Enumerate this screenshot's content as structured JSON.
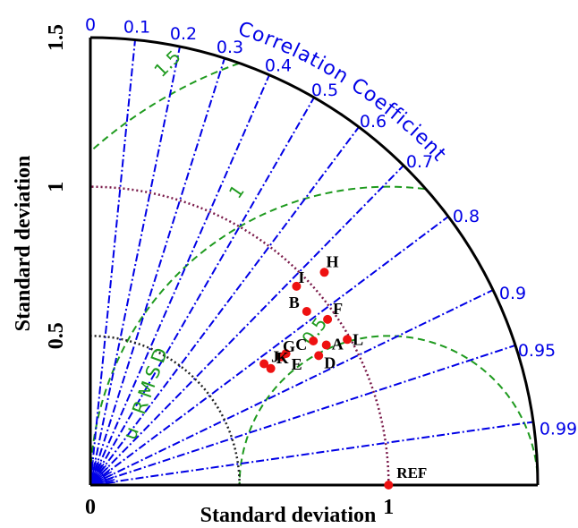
{
  "chart_data": {
    "type": "scatter",
    "subtype": "taylor-diagram",
    "title": "",
    "xlabel": "Standard deviation",
    "ylabel": "Standard deviation",
    "x_ticks": [
      {
        "value": 0,
        "label": "0"
      },
      {
        "value": 1,
        "label": "1"
      }
    ],
    "y_ticks": [
      {
        "value": 0,
        "label": "0"
      },
      {
        "value": 0.5,
        "label": "0.5"
      },
      {
        "value": 1,
        "label": "1"
      },
      {
        "value": 1.5,
        "label": "1.5"
      }
    ],
    "std_max": 1.5,
    "x_max": 1,
    "correlation_label": "Correlation Coefficient",
    "correlation_ticks": [
      {
        "value": 0,
        "label": "0"
      },
      {
        "value": 0.1,
        "label": "0.1"
      },
      {
        "value": 0.2,
        "label": "0.2"
      },
      {
        "value": 0.3,
        "label": "0.3"
      },
      {
        "value": 0.4,
        "label": "0.4"
      },
      {
        "value": 0.5,
        "label": "0.5"
      },
      {
        "value": 0.6,
        "label": "0.6"
      },
      {
        "value": 0.7,
        "label": "0.7"
      },
      {
        "value": 0.8,
        "label": "0.8"
      },
      {
        "value": 0.9,
        "label": "0.9"
      },
      {
        "value": 0.95,
        "label": "0.95"
      },
      {
        "value": 0.99,
        "label": "0.99"
      }
    ],
    "rmsd_label": "u RMSD",
    "rmsd_contours": [
      {
        "value": 0.5,
        "label": "0.5"
      },
      {
        "value": 1,
        "label": "1"
      },
      {
        "value": 1.5,
        "label": "1.5"
      }
    ],
    "std_arcs": [
      0.5,
      1
    ],
    "reference": {
      "label": "REF",
      "std": 1,
      "corr": 1
    },
    "points": [
      {
        "label": "A",
        "std": 0.92,
        "corr": 0.86
      },
      {
        "label": "B",
        "std": 0.93,
        "corr": 0.78
      },
      {
        "label": "C",
        "std": 0.89,
        "corr": 0.84
      },
      {
        "label": "D",
        "std": 0.88,
        "corr": 0.87
      },
      {
        "label": "E",
        "std": 0.79,
        "corr": 0.83
      },
      {
        "label": "F",
        "std": 0.97,
        "corr": 0.82
      },
      {
        "label": "G",
        "std": 0.77,
        "corr": 0.83
      },
      {
        "label": "H",
        "std": 1.06,
        "corr": 0.74
      },
      {
        "label": "I",
        "std": 0.96,
        "corr": 0.72
      },
      {
        "label": "J",
        "std": 0.71,
        "corr": 0.82
      },
      {
        "label": "K",
        "std": 0.72,
        "corr": 0.84
      },
      {
        "label": "L",
        "std": 0.99,
        "corr": 0.87
      }
    ],
    "colors": {
      "correlation": "#0000e6",
      "rmsd": "#1e9a1e",
      "std_arc": "#7a1a4a",
      "std_arc_inner": "#222222",
      "points": "#ee1111",
      "axes": "#000000"
    },
    "grid": true
  }
}
